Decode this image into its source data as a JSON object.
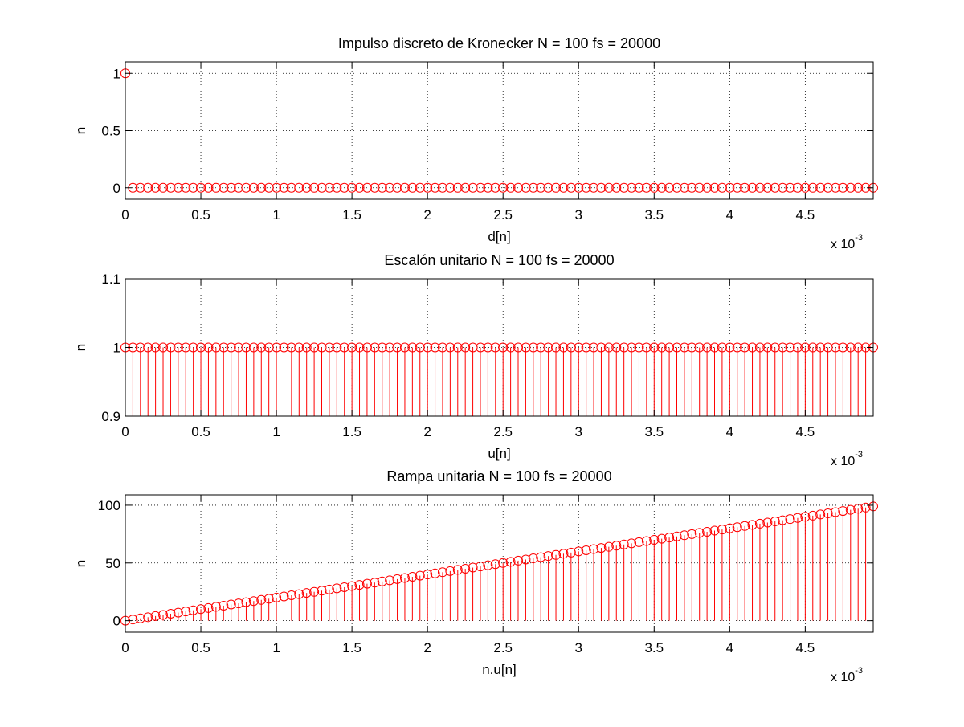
{
  "figure": {
    "background": "#ffffff",
    "marker_color": "#ff0000"
  },
  "chart_data": [
    {
      "type": "stem",
      "title": "Impulso discreto de Kronecker N = 100 fs = 20000",
      "xlabel": "d[n]",
      "ylabel": "n",
      "x_exponent_base": "x 10",
      "x_exponent_power": "-3",
      "xlim": [
        0,
        0.00495
      ],
      "ylim": [
        -0.1,
        1.1
      ],
      "xticks": [
        0,
        0.0005,
        0.001,
        0.0015,
        0.002,
        0.0025,
        0.003,
        0.0035,
        0.004,
        0.0045
      ],
      "xtick_labels": [
        "0",
        "0.5",
        "1",
        "1.5",
        "2",
        "2.5",
        "3",
        "3.5",
        "4",
        "4.5"
      ],
      "yticks": [
        0,
        0.5,
        1
      ],
      "ytick_labels": [
        "0",
        "0.5",
        "1"
      ],
      "grid": true,
      "samples": {
        "count": 100,
        "fs": 20000,
        "formula": "impulse"
      }
    },
    {
      "type": "stem",
      "title": "Escalón unitario N = 100 fs = 20000",
      "xlabel": "u[n]",
      "ylabel": "n",
      "x_exponent_base": "x 10",
      "x_exponent_power": "-3",
      "xlim": [
        0,
        0.00495
      ],
      "ylim": [
        0.9,
        1.1
      ],
      "xticks": [
        0,
        0.0005,
        0.001,
        0.0015,
        0.002,
        0.0025,
        0.003,
        0.0035,
        0.004,
        0.0045
      ],
      "xtick_labels": [
        "0",
        "0.5",
        "1",
        "1.5",
        "2",
        "2.5",
        "3",
        "3.5",
        "4",
        "4.5"
      ],
      "yticks": [
        0.9,
        1,
        1.1
      ],
      "ytick_labels": [
        "0.9",
        "1",
        "1.1"
      ],
      "grid": true,
      "samples": {
        "count": 100,
        "fs": 20000,
        "formula": "step"
      }
    },
    {
      "type": "stem",
      "title": "Rampa unitaria N = 100 fs = 20000",
      "xlabel": "n.u[n]",
      "ylabel": "n",
      "x_exponent_base": "x 10",
      "x_exponent_power": "-3",
      "xlim": [
        0,
        0.00495
      ],
      "ylim": [
        -10,
        109
      ],
      "xticks": [
        0,
        0.0005,
        0.001,
        0.0015,
        0.002,
        0.0025,
        0.003,
        0.0035,
        0.004,
        0.0045
      ],
      "xtick_labels": [
        "0",
        "0.5",
        "1",
        "1.5",
        "2",
        "2.5",
        "3",
        "3.5",
        "4",
        "4.5"
      ],
      "yticks": [
        0,
        50,
        100
      ],
      "ytick_labels": [
        "0",
        "50",
        "100"
      ],
      "grid": true,
      "samples": {
        "count": 100,
        "fs": 20000,
        "formula": "ramp"
      }
    }
  ]
}
